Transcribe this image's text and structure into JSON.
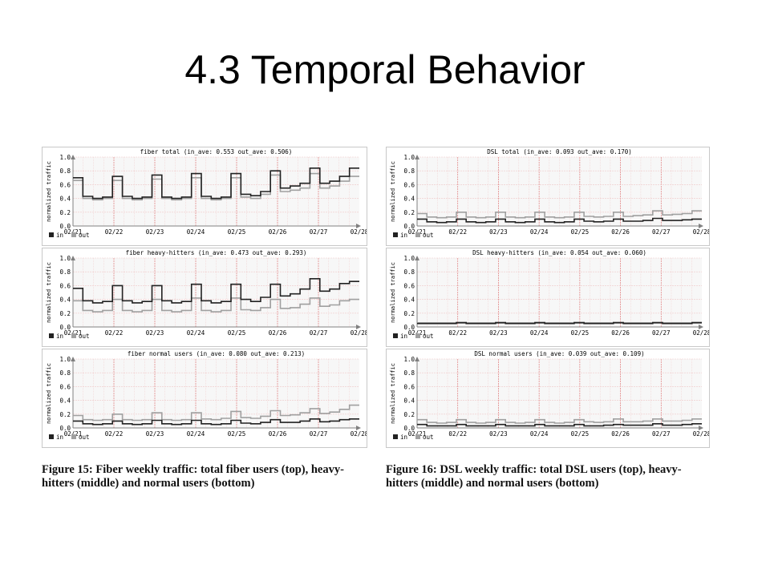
{
  "slide": {
    "title": "4.3 Temporal Behavior"
  },
  "captions": {
    "fiber": "Figure 15: Fiber weekly traffic: total fiber users (top), heavy-hitters (middle) and normal users (bottom)",
    "dsl": "Figure 16: DSL weekly traffic: total DSL users (top), heavy-hitters (middle) and normal users (bottom)"
  },
  "colors": {
    "in": "#222222",
    "out": "#a0a0a0",
    "grid": "#f0c8c8",
    "frame": "#808080"
  },
  "chart_data": [
    {
      "id": "fiber-total",
      "type": "line",
      "title": "fiber total (in_ave: 0.553 out_ave: 0.506)",
      "ylabel": "normalized traffic",
      "ylim": [
        0,
        1.0
      ],
      "yticks": [
        "0.0",
        "0.2",
        "0.4",
        "0.6",
        "0.8",
        "1.0"
      ],
      "xticks": [
        "02/21",
        "02/22",
        "02/23",
        "02/24",
        "02/25",
        "02/26",
        "02/27",
        "02/28"
      ],
      "legend": [
        "in",
        "out"
      ],
      "series": [
        {
          "name": "in",
          "values": [
            0.7,
            0.43,
            0.4,
            0.42,
            0.72,
            0.43,
            0.4,
            0.42,
            0.74,
            0.42,
            0.4,
            0.42,
            0.76,
            0.43,
            0.4,
            0.42,
            0.76,
            0.46,
            0.44,
            0.5,
            0.8,
            0.55,
            0.58,
            0.62,
            0.84,
            0.62,
            0.65,
            0.72,
            0.84
          ]
        },
        {
          "name": "out",
          "values": [
            0.66,
            0.4,
            0.38,
            0.4,
            0.66,
            0.4,
            0.38,
            0.4,
            0.68,
            0.4,
            0.38,
            0.4,
            0.7,
            0.4,
            0.38,
            0.4,
            0.7,
            0.42,
            0.4,
            0.46,
            0.74,
            0.5,
            0.52,
            0.55,
            0.76,
            0.55,
            0.58,
            0.65,
            0.72
          ]
        }
      ]
    },
    {
      "id": "fiber-heavy",
      "type": "line",
      "title": "fiber heavy-hitters (in_ave: 0.473 out_ave: 0.293)",
      "ylabel": "normalized traffic",
      "ylim": [
        0,
        1.0
      ],
      "yticks": [
        "0.0",
        "0.2",
        "0.4",
        "0.6",
        "0.8",
        "1.0"
      ],
      "xticks": [
        "02/21",
        "02/22",
        "02/23",
        "02/24",
        "02/25",
        "02/26",
        "02/27",
        "02/28"
      ],
      "legend": [
        "in",
        "out"
      ],
      "series": [
        {
          "name": "in",
          "values": [
            0.56,
            0.38,
            0.35,
            0.37,
            0.6,
            0.38,
            0.35,
            0.37,
            0.6,
            0.38,
            0.35,
            0.37,
            0.62,
            0.38,
            0.35,
            0.37,
            0.62,
            0.4,
            0.37,
            0.43,
            0.62,
            0.45,
            0.48,
            0.55,
            0.7,
            0.52,
            0.55,
            0.63,
            0.66
          ]
        },
        {
          "name": "out",
          "values": [
            0.38,
            0.24,
            0.22,
            0.24,
            0.4,
            0.24,
            0.22,
            0.24,
            0.4,
            0.24,
            0.22,
            0.24,
            0.42,
            0.24,
            0.22,
            0.24,
            0.42,
            0.25,
            0.24,
            0.28,
            0.4,
            0.27,
            0.28,
            0.33,
            0.42,
            0.3,
            0.32,
            0.38,
            0.4
          ]
        }
      ]
    },
    {
      "id": "fiber-normal",
      "type": "line",
      "title": "fiber normal users (in_ave: 0.080 out_ave: 0.213)",
      "ylabel": "normalized traffic",
      "ylim": [
        0,
        1.0
      ],
      "yticks": [
        "0.0",
        "0.2",
        "0.4",
        "0.6",
        "0.8",
        "1.0"
      ],
      "xticks": [
        "02/21",
        "02/22",
        "02/23",
        "02/24",
        "02/25",
        "02/26",
        "02/27",
        "02/28"
      ],
      "legend": [
        "in",
        "out"
      ],
      "series": [
        {
          "name": "in",
          "values": [
            0.1,
            0.06,
            0.05,
            0.06,
            0.1,
            0.06,
            0.05,
            0.06,
            0.11,
            0.06,
            0.05,
            0.06,
            0.11,
            0.06,
            0.05,
            0.06,
            0.11,
            0.07,
            0.06,
            0.08,
            0.12,
            0.08,
            0.08,
            0.1,
            0.13,
            0.09,
            0.1,
            0.12,
            0.13
          ]
        },
        {
          "name": "out",
          "values": [
            0.18,
            0.12,
            0.11,
            0.12,
            0.2,
            0.12,
            0.11,
            0.12,
            0.22,
            0.12,
            0.11,
            0.12,
            0.22,
            0.13,
            0.12,
            0.14,
            0.24,
            0.15,
            0.14,
            0.17,
            0.25,
            0.18,
            0.19,
            0.22,
            0.28,
            0.21,
            0.23,
            0.27,
            0.33
          ]
        }
      ]
    },
    {
      "id": "dsl-total",
      "type": "line",
      "title": "DSL total (in_ave: 0.093 out_ave: 0.170)",
      "ylabel": "normalized traffic",
      "ylim": [
        0,
        1.0
      ],
      "yticks": [
        "0.0",
        "0.2",
        "0.4",
        "0.6",
        "0.8",
        "1.0"
      ],
      "xticks": [
        "02/21",
        "02/22",
        "02/23",
        "02/24",
        "02/25",
        "02/26",
        "02/27",
        "02/28"
      ],
      "legend": [
        "in",
        "out"
      ],
      "series": [
        {
          "name": "in",
          "values": [
            0.1,
            0.06,
            0.05,
            0.06,
            0.1,
            0.06,
            0.05,
            0.06,
            0.1,
            0.06,
            0.05,
            0.06,
            0.1,
            0.06,
            0.05,
            0.06,
            0.1,
            0.07,
            0.06,
            0.07,
            0.1,
            0.07,
            0.07,
            0.08,
            0.11,
            0.08,
            0.08,
            0.09,
            0.1
          ]
        },
        {
          "name": "out",
          "values": [
            0.18,
            0.13,
            0.12,
            0.13,
            0.2,
            0.13,
            0.12,
            0.13,
            0.2,
            0.13,
            0.12,
            0.13,
            0.2,
            0.13,
            0.12,
            0.13,
            0.2,
            0.14,
            0.13,
            0.14,
            0.2,
            0.14,
            0.15,
            0.16,
            0.22,
            0.16,
            0.17,
            0.18,
            0.22
          ]
        }
      ]
    },
    {
      "id": "dsl-heavy",
      "type": "line",
      "title": "DSL heavy-hitters (in_ave: 0.054 out_ave: 0.060)",
      "ylabel": "normalized traffic",
      "ylim": [
        0,
        1.0
      ],
      "yticks": [
        "0.0",
        "0.2",
        "0.4",
        "0.6",
        "0.8",
        "1.0"
      ],
      "xticks": [
        "02/21",
        "02/22",
        "02/23",
        "02/24",
        "02/25",
        "02/26",
        "02/27",
        "02/28"
      ],
      "legend": [
        "in",
        "out"
      ],
      "series": [
        {
          "name": "in",
          "values": [
            0.05,
            0.05,
            0.05,
            0.05,
            0.06,
            0.05,
            0.05,
            0.05,
            0.06,
            0.05,
            0.05,
            0.05,
            0.06,
            0.05,
            0.05,
            0.05,
            0.06,
            0.05,
            0.05,
            0.05,
            0.06,
            0.05,
            0.05,
            0.05,
            0.06,
            0.05,
            0.05,
            0.05,
            0.06
          ]
        },
        {
          "name": "out",
          "values": [
            0.06,
            0.06,
            0.06,
            0.06,
            0.07,
            0.06,
            0.06,
            0.06,
            0.07,
            0.06,
            0.06,
            0.06,
            0.07,
            0.06,
            0.06,
            0.06,
            0.07,
            0.06,
            0.06,
            0.06,
            0.07,
            0.06,
            0.06,
            0.06,
            0.07,
            0.06,
            0.06,
            0.06,
            0.07
          ]
        }
      ]
    },
    {
      "id": "dsl-normal",
      "type": "line",
      "title": "DSL normal users (in_ave: 0.039 out_ave: 0.109)",
      "ylabel": "normalized traffic",
      "ylim": [
        0,
        1.0
      ],
      "yticks": [
        "0.0",
        "0.2",
        "0.4",
        "0.6",
        "0.8",
        "1.0"
      ],
      "xticks": [
        "02/21",
        "02/22",
        "02/23",
        "02/24",
        "02/25",
        "02/26",
        "02/27",
        "02/28"
      ],
      "legend": [
        "in",
        "out"
      ],
      "series": [
        {
          "name": "in",
          "values": [
            0.05,
            0.03,
            0.03,
            0.03,
            0.05,
            0.03,
            0.03,
            0.03,
            0.05,
            0.03,
            0.03,
            0.03,
            0.05,
            0.03,
            0.03,
            0.03,
            0.05,
            0.03,
            0.03,
            0.04,
            0.05,
            0.04,
            0.04,
            0.04,
            0.06,
            0.04,
            0.04,
            0.05,
            0.06
          ]
        },
        {
          "name": "out",
          "values": [
            0.12,
            0.08,
            0.07,
            0.08,
            0.12,
            0.08,
            0.07,
            0.08,
            0.12,
            0.08,
            0.07,
            0.08,
            0.12,
            0.08,
            0.07,
            0.08,
            0.12,
            0.09,
            0.08,
            0.09,
            0.13,
            0.09,
            0.09,
            0.1,
            0.13,
            0.1,
            0.1,
            0.11,
            0.13
          ]
        }
      ]
    }
  ]
}
